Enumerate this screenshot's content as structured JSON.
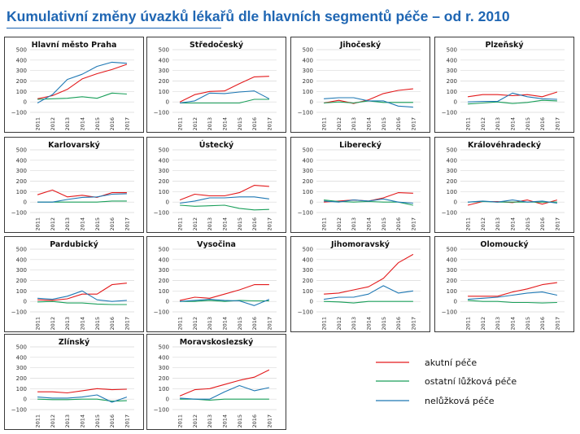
{
  "page": {
    "title": "Kumulativní změny úvazků lékařů dle hlavních segmentů péče – od r. 2010"
  },
  "legend": [
    {
      "label": "akutní péče",
      "color": "#e31a1c"
    },
    {
      "label": "ostatní lůžková péče",
      "color": "#1a9f5a"
    },
    {
      "label": "nelůžková péče",
      "color": "#1f78b4"
    }
  ],
  "chart_data": [
    {
      "type": "line",
      "title": "Hlavní město Praha",
      "categories": [
        "2011",
        "2012",
        "2013",
        "2014",
        "2015",
        "2016",
        "2017"
      ],
      "ylim": [
        -100,
        500
      ],
      "yticks": [
        -100,
        0,
        100,
        200,
        300,
        400,
        500
      ],
      "grid": true,
      "series": [
        {
          "name": "akutní péče",
          "values": [
            30,
            60,
            120,
            220,
            270,
            310,
            360
          ]
        },
        {
          "name": "ostatní lůžková péče",
          "values": [
            25,
            30,
            35,
            50,
            35,
            85,
            75
          ]
        },
        {
          "name": "nelůžková péče",
          "values": [
            -10,
            70,
            215,
            265,
            340,
            380,
            370
          ]
        }
      ]
    },
    {
      "type": "line",
      "title": "Středočeský",
      "categories": [
        "2011",
        "2012",
        "2013",
        "2014",
        "2015",
        "2016",
        "2017"
      ],
      "ylim": [
        -100,
        500
      ],
      "yticks": [
        -100,
        0,
        100,
        200,
        300,
        400,
        500
      ],
      "grid": true,
      "series": [
        {
          "name": "akutní péče",
          "values": [
            0,
            70,
            100,
            105,
            175,
            240,
            245
          ]
        },
        {
          "name": "ostatní lůžková péče",
          "values": [
            -10,
            -10,
            -10,
            -10,
            -10,
            25,
            25
          ]
        },
        {
          "name": "nelůžková péče",
          "values": [
            -10,
            10,
            85,
            80,
            95,
            105,
            30
          ]
        }
      ]
    },
    {
      "type": "line",
      "title": "Jihočeský",
      "categories": [
        "2011",
        "2012",
        "2013",
        "2014",
        "2015",
        "2016",
        "2017"
      ],
      "ylim": [
        -100,
        500
      ],
      "yticks": [
        -100,
        0,
        100,
        200,
        300,
        400,
        500
      ],
      "grid": true,
      "series": [
        {
          "name": "akutní péče",
          "values": [
            -10,
            15,
            -15,
            20,
            80,
            110,
            125
          ]
        },
        {
          "name": "ostatní lůžková péče",
          "values": [
            -10,
            0,
            -10,
            10,
            -5,
            -5,
            -5
          ]
        },
        {
          "name": "nelůžková péče",
          "values": [
            30,
            40,
            40,
            10,
            10,
            -40,
            -50
          ]
        }
      ]
    },
    {
      "type": "line",
      "title": "Plzeňský",
      "categories": [
        "2011",
        "2012",
        "2013",
        "2014",
        "2015",
        "2016",
        "2017"
      ],
      "ylim": [
        -100,
        500
      ],
      "yticks": [
        -100,
        0,
        100,
        200,
        300,
        400,
        500
      ],
      "grid": true,
      "series": [
        {
          "name": "akutní péče",
          "values": [
            50,
            70,
            70,
            60,
            70,
            50,
            95
          ]
        },
        {
          "name": "ostatní lůžková péče",
          "values": [
            -20,
            -10,
            0,
            -15,
            -5,
            15,
            10
          ]
        },
        {
          "name": "nelůžková péče",
          "values": [
            0,
            5,
            5,
            85,
            50,
            30,
            25
          ]
        }
      ]
    },
    {
      "type": "line",
      "title": "Karlovarský",
      "categories": [
        "2011",
        "2012",
        "2013",
        "2014",
        "2015",
        "2016",
        "2017"
      ],
      "ylim": [
        -100,
        500
      ],
      "yticks": [
        -100,
        0,
        100,
        200,
        300,
        400,
        500
      ],
      "grid": true,
      "series": [
        {
          "name": "akutní péče",
          "values": [
            70,
            115,
            50,
            65,
            45,
            90,
            90
          ]
        },
        {
          "name": "ostatní lůžková péče",
          "values": [
            0,
            0,
            0,
            0,
            0,
            10,
            10
          ]
        },
        {
          "name": "nelůžková péče",
          "values": [
            0,
            0,
            25,
            45,
            50,
            75,
            80
          ]
        }
      ]
    },
    {
      "type": "line",
      "title": "Ústecký",
      "categories": [
        "2011",
        "2012",
        "2013",
        "2014",
        "2015",
        "2016",
        "2017"
      ],
      "ylim": [
        -100,
        500
      ],
      "yticks": [
        -100,
        0,
        100,
        200,
        300,
        400,
        500
      ],
      "grid": true,
      "series": [
        {
          "name": "akutní péče",
          "values": [
            20,
            75,
            60,
            60,
            90,
            160,
            150
          ]
        },
        {
          "name": "ostatní lůžková péče",
          "values": [
            -30,
            -40,
            -35,
            -30,
            -60,
            -75,
            -70
          ]
        },
        {
          "name": "nelůžková péče",
          "values": [
            -10,
            10,
            40,
            40,
            50,
            50,
            30
          ]
        }
      ]
    },
    {
      "type": "line",
      "title": "Liberecký",
      "categories": [
        "2011",
        "2012",
        "2013",
        "2014",
        "2015",
        "2016",
        "2017"
      ],
      "ylim": [
        -100,
        500
      ],
      "yticks": [
        -100,
        0,
        100,
        200,
        300,
        400,
        500
      ],
      "grid": true,
      "series": [
        {
          "name": "akutní péče",
          "values": [
            0,
            10,
            20,
            10,
            40,
            90,
            85
          ]
        },
        {
          "name": "ostatní lůžková péče",
          "values": [
            20,
            5,
            0,
            5,
            0,
            0,
            -30
          ]
        },
        {
          "name": "nelůžková péče",
          "values": [
            10,
            0,
            20,
            10,
            30,
            0,
            -10
          ]
        }
      ]
    },
    {
      "type": "line",
      "title": "Královéhradecký",
      "categories": [
        "2011",
        "2012",
        "2013",
        "2014",
        "2015",
        "2016",
        "2017"
      ],
      "ylim": [
        -100,
        500
      ],
      "yticks": [
        -100,
        0,
        100,
        200,
        300,
        400,
        500
      ],
      "grid": true,
      "series": [
        {
          "name": "akutní péče",
          "values": [
            -30,
            5,
            5,
            -5,
            20,
            -20,
            20
          ]
        },
        {
          "name": "ostatní lůžková péče",
          "values": [
            0,
            5,
            0,
            0,
            0,
            0,
            0
          ]
        },
        {
          "name": "nelůžková péče",
          "values": [
            0,
            10,
            0,
            20,
            0,
            10,
            -10
          ]
        }
      ]
    },
    {
      "type": "line",
      "title": "Pardubický",
      "categories": [
        "2011",
        "2012",
        "2013",
        "2014",
        "2015",
        "2016",
        "2017"
      ],
      "ylim": [
        -100,
        500
      ],
      "yticks": [
        -100,
        0,
        100,
        200,
        300,
        400,
        500
      ],
      "grid": true,
      "series": [
        {
          "name": "akutní péče",
          "values": [
            15,
            10,
            25,
            70,
            70,
            160,
            175
          ]
        },
        {
          "name": "ostatní lůžková péče",
          "values": [
            -5,
            0,
            -15,
            -15,
            -25,
            -30,
            -30
          ]
        },
        {
          "name": "nelůžková péče",
          "values": [
            30,
            20,
            50,
            100,
            15,
            0,
            10
          ]
        }
      ]
    },
    {
      "type": "line",
      "title": "Vysočina",
      "categories": [
        "2011",
        "2012",
        "2013",
        "2014",
        "2015",
        "2016",
        "2017"
      ],
      "ylim": [
        -100,
        500
      ],
      "yticks": [
        -100,
        0,
        100,
        200,
        300,
        400,
        500
      ],
      "grid": true,
      "series": [
        {
          "name": "akutní péče",
          "values": [
            10,
            40,
            30,
            70,
            110,
            160,
            160
          ]
        },
        {
          "name": "ostatní lůžková péče",
          "values": [
            0,
            0,
            10,
            0,
            10,
            5,
            5
          ]
        },
        {
          "name": "nelůžková péče",
          "values": [
            0,
            10,
            20,
            10,
            5,
            -40,
            20
          ]
        }
      ]
    },
    {
      "type": "line",
      "title": "Jihomoravský",
      "categories": [
        "2011",
        "2012",
        "2013",
        "2014",
        "2015",
        "2016",
        "2017"
      ],
      "ylim": [
        -100,
        500
      ],
      "yticks": [
        -100,
        0,
        100,
        200,
        300,
        400,
        500
      ],
      "grid": true,
      "series": [
        {
          "name": "akutní péče",
          "values": [
            70,
            80,
            110,
            140,
            220,
            370,
            450
          ]
        },
        {
          "name": "ostatní lůžková péče",
          "values": [
            0,
            -5,
            -15,
            0,
            0,
            0,
            0
          ]
        },
        {
          "name": "nelůžková péče",
          "values": [
            20,
            40,
            40,
            70,
            150,
            80,
            100
          ]
        }
      ]
    },
    {
      "type": "line",
      "title": "Olomoucký",
      "categories": [
        "2011",
        "2012",
        "2013",
        "2014",
        "2015",
        "2016",
        "2017"
      ],
      "ylim": [
        -100,
        500
      ],
      "yticks": [
        -100,
        0,
        100,
        200,
        300,
        400,
        500
      ],
      "grid": true,
      "series": [
        {
          "name": "akutní péče",
          "values": [
            50,
            50,
            50,
            90,
            120,
            160,
            180
          ]
        },
        {
          "name": "ostatní lůžková péče",
          "values": [
            10,
            0,
            0,
            -10,
            -10,
            -15,
            -10
          ]
        },
        {
          "name": "nelůžková péče",
          "values": [
            20,
            30,
            40,
            60,
            80,
            90,
            60
          ]
        }
      ]
    },
    {
      "type": "line",
      "title": "Zlínský",
      "categories": [
        "2011",
        "2012",
        "2013",
        "2014",
        "2015",
        "2016",
        "2017"
      ],
      "ylim": [
        -100,
        500
      ],
      "yticks": [
        -100,
        0,
        100,
        200,
        300,
        400,
        500
      ],
      "grid": true,
      "series": [
        {
          "name": "akutní péče",
          "values": [
            70,
            70,
            60,
            80,
            100,
            90,
            95
          ]
        },
        {
          "name": "ostatní lůžková péče",
          "values": [
            0,
            -5,
            -5,
            0,
            0,
            -20,
            -15
          ]
        },
        {
          "name": "nelůžková péče",
          "values": [
            20,
            10,
            10,
            20,
            40,
            -30,
            20
          ]
        }
      ]
    },
    {
      "type": "line",
      "title": "Moravskoslezský",
      "categories": [
        "2011",
        "2012",
        "2013",
        "2014",
        "2015",
        "2016",
        "2017"
      ],
      "ylim": [
        -100,
        500
      ],
      "yticks": [
        -100,
        0,
        100,
        200,
        300,
        400,
        500
      ],
      "grid": true,
      "series": [
        {
          "name": "akutní péče",
          "values": [
            30,
            90,
            100,
            140,
            180,
            210,
            280
          ]
        },
        {
          "name": "ostatní lůžková péče",
          "values": [
            0,
            0,
            -10,
            0,
            0,
            0,
            0
          ]
        },
        {
          "name": "nelůžková péče",
          "values": [
            10,
            0,
            0,
            70,
            130,
            80,
            110
          ]
        }
      ]
    }
  ]
}
